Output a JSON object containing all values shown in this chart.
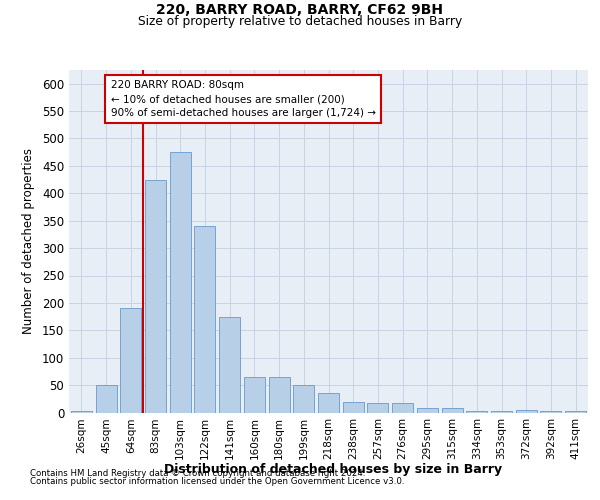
{
  "title1": "220, BARRY ROAD, BARRY, CF62 9BH",
  "title2": "Size of property relative to detached houses in Barry",
  "xlabel": "Distribution of detached houses by size in Barry",
  "ylabel": "Number of detached properties",
  "categories": [
    "26sqm",
    "45sqm",
    "64sqm",
    "83sqm",
    "103sqm",
    "122sqm",
    "141sqm",
    "160sqm",
    "180sqm",
    "199sqm",
    "218sqm",
    "238sqm",
    "257sqm",
    "276sqm",
    "295sqm",
    "315sqm",
    "334sqm",
    "353sqm",
    "372sqm",
    "392sqm",
    "411sqm"
  ],
  "values": [
    3,
    50,
    190,
    425,
    475,
    340,
    175,
    65,
    65,
    50,
    35,
    20,
    17,
    17,
    8,
    8,
    3,
    2,
    5,
    3,
    3
  ],
  "bar_color": "#b8cfe8",
  "bar_edge_color": "#6699cc",
  "grid_color": "#c8d4e4",
  "bg_color": "#e8eef6",
  "vline_index": 2.5,
  "vline_color": "#cc0000",
  "annotation_line1": "220 BARRY ROAD: 80sqm",
  "annotation_line2": "← 10% of detached houses are smaller (200)",
  "annotation_line3": "90% of semi-detached houses are larger (1,724) →",
  "annotation_box_edgecolor": "#cc0000",
  "footnote1": "Contains HM Land Registry data © Crown copyright and database right 2024.",
  "footnote2": "Contains public sector information licensed under the Open Government Licence v3.0.",
  "ylim": [
    0,
    625
  ],
  "yticks": [
    0,
    50,
    100,
    150,
    200,
    250,
    300,
    350,
    400,
    450,
    500,
    550,
    600
  ]
}
